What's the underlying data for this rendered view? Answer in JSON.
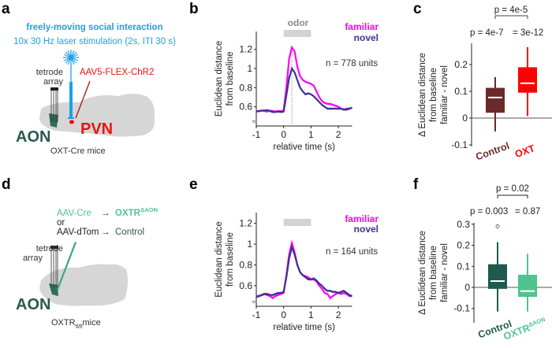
{
  "panels": {
    "a": {
      "label": "a",
      "title": "freely-moving social interaction",
      "subtitle": "10x 30 Hz laser stimulation (2s, ITI 30 s)",
      "tetrode_label_1": "tetrode",
      "tetrode_label_2": "array",
      "virus": "AAV5-FLEX-ChR2",
      "region_aon": "AON",
      "region_pvn": "PVN",
      "mouse_line": "OXT-Cre mice"
    },
    "d": {
      "label": "d",
      "virus_cre": "AAV-Cre",
      "arrow1": "→",
      "group_oxtr": "OXTR",
      "group_oxtr_sup": "ΔAON",
      "or": "or",
      "virus_dtom": "AAV-dTom",
      "arrow2": "→",
      "group_control": "Control",
      "tetrode_label_1": "tetrode",
      "tetrode_label_2": "array",
      "region_aon": "AON",
      "mouse_line": "OXTR",
      "mouse_line_sub": "fl/fl",
      "mouse_line_suffix": "mice"
    },
    "b": {
      "label": "b",
      "odor_label": "odor",
      "n_label": "n = 778 units"
    },
    "e": {
      "label": "e",
      "n_label": "n = 164 units"
    },
    "c": {
      "label": "c",
      "p_between": "p = 4e-7",
      "p_within": "= 3e-12",
      "p_bracket": "p = 4e-5"
    },
    "f": {
      "label": "f",
      "p_between": "p = 0.003",
      "p_within": "= 0.87",
      "p_bracket": "p = 0.02"
    }
  },
  "colors": {
    "familiar": "#ff00ff",
    "novel": "#3b3591",
    "odor_bar": "#d3d3d3",
    "control_c": "#6b2a2a",
    "oxt": "#ff0000",
    "control_f": "#1e5a4e",
    "oxtr": "#4fc490",
    "laser": "#1ea0e6"
  },
  "chart_data": [
    {
      "id": "b",
      "type": "line",
      "xlabel": "relative time (s)",
      "ylabel": [
        "Euclidean distance",
        "from baseline"
      ],
      "xticks": [
        -1,
        0,
        1,
        2
      ],
      "xtick_labels": [
        "-1",
        "0",
        "1",
        "2"
      ],
      "yticks": [
        0.6,
        0.8,
        1,
        1.2
      ],
      "ytick_labels": [
        "0.6",
        "0.8",
        "1",
        "1.2"
      ],
      "xlim": [
        -1,
        2.5
      ],
      "ylim": [
        0.45,
        1.3
      ],
      "x": [
        -1,
        -0.9,
        -0.8,
        -0.7,
        -0.6,
        -0.5,
        -0.4,
        -0.3,
        -0.2,
        -0.1,
        0,
        0.1,
        0.2,
        0.3,
        0.4,
        0.5,
        0.6,
        0.7,
        0.8,
        0.9,
        1,
        1.1,
        1.2,
        1.3,
        1.4,
        1.5,
        1.6,
        1.7,
        1.8,
        1.9,
        2,
        2.1,
        2.2,
        2.3,
        2.4,
        2.5
      ],
      "series": [
        {
          "name": "familiar",
          "values": [
            0.555,
            0.555,
            0.56,
            0.555,
            0.55,
            0.56,
            0.555,
            0.55,
            0.555,
            0.555,
            0.56,
            0.8,
            1.1,
            1.22,
            1.18,
            1.02,
            0.92,
            0.88,
            0.86,
            0.85,
            0.84,
            0.82,
            0.76,
            0.7,
            0.66,
            0.64,
            0.63,
            0.63,
            0.62,
            0.61,
            0.6,
            0.58,
            0.57,
            0.58,
            0.58,
            0.59
          ]
        },
        {
          "name": "novel",
          "values": [
            0.55,
            0.555,
            0.56,
            0.56,
            0.565,
            0.555,
            0.545,
            0.545,
            0.55,
            0.545,
            0.55,
            0.72,
            0.9,
            1.0,
            0.96,
            0.88,
            0.8,
            0.76,
            0.73,
            0.74,
            0.73,
            0.71,
            0.68,
            0.65,
            0.62,
            0.6,
            0.58,
            0.58,
            0.58,
            0.58,
            0.58,
            0.58,
            0.57,
            0.57,
            0.58,
            0.59
          ]
        }
      ],
      "stim_window": [
        0,
        1
      ],
      "marker_x": 0.3
    },
    {
      "id": "e",
      "type": "line",
      "xlabel": "relative time (s)",
      "ylabel": [
        "Euclidean distance",
        "from baseline"
      ],
      "xticks": [
        -1,
        0,
        1,
        2
      ],
      "xtick_labels": [
        "-1",
        "0",
        "1",
        "2"
      ],
      "yticks": [
        0.6,
        0.8,
        1,
        1.2
      ],
      "ytick_labels": [
        "0.6",
        "0.8",
        "1",
        "1.2"
      ],
      "xlim": [
        -1,
        2.5
      ],
      "ylim": [
        0.45,
        1.3
      ],
      "x": [
        -1,
        -0.9,
        -0.8,
        -0.7,
        -0.6,
        -0.5,
        -0.4,
        -0.3,
        -0.2,
        -0.1,
        0,
        0.1,
        0.2,
        0.3,
        0.4,
        0.5,
        0.6,
        0.7,
        0.8,
        0.9,
        1,
        1.1,
        1.2,
        1.3,
        1.4,
        1.5,
        1.6,
        1.7,
        1.8,
        1.9,
        2,
        2.1,
        2.2,
        2.3,
        2.4,
        2.5
      ],
      "series": [
        {
          "name": "familiar",
          "values": [
            0.5,
            0.5,
            0.51,
            0.52,
            0.51,
            0.5,
            0.48,
            0.5,
            0.51,
            0.52,
            0.53,
            0.7,
            0.9,
            1.01,
            0.92,
            0.8,
            0.73,
            0.7,
            0.69,
            0.68,
            0.66,
            0.66,
            0.64,
            0.6,
            0.57,
            0.53,
            0.52,
            0.48,
            0.5,
            0.52,
            0.53,
            0.52,
            0.53,
            0.52,
            0.5,
            0.5
          ]
        },
        {
          "name": "novel",
          "values": [
            0.49,
            0.5,
            0.51,
            0.52,
            0.52,
            0.51,
            0.51,
            0.52,
            0.53,
            0.53,
            0.54,
            0.68,
            0.86,
            0.97,
            0.9,
            0.8,
            0.73,
            0.7,
            0.68,
            0.66,
            0.66,
            0.67,
            0.65,
            0.62,
            0.6,
            0.57,
            0.55,
            0.55,
            0.54,
            0.54,
            0.53,
            0.54,
            0.55,
            0.53,
            0.51,
            0.5
          ]
        }
      ],
      "stim_window": [
        0,
        1
      ]
    },
    {
      "id": "c",
      "type": "box",
      "ylabel": [
        "Δ Euclidean distance",
        "from baseline",
        "familiar - novel"
      ],
      "yticks": [
        -0.1,
        0,
        0.1,
        0.2
      ],
      "ytick_labels": [
        "-0.1",
        "0",
        "0.1",
        "0.2"
      ],
      "ylim": [
        -0.1,
        0.28
      ],
      "categories": [
        "Control",
        "OXT"
      ],
      "boxes": [
        {
          "name": "Control",
          "whisker_low": -0.05,
          "q1": 0.02,
          "median": 0.077,
          "q3": 0.113,
          "whisker_high": 0.153,
          "outliers": []
        },
        {
          "name": "OXT",
          "whisker_low": 0.008,
          "q1": 0.095,
          "median": 0.13,
          "q3": 0.19,
          "whisker_high": 0.265,
          "outliers": []
        }
      ]
    },
    {
      "id": "f",
      "type": "box",
      "ylabel": [
        "Δ Euclidean distance",
        "from baseline",
        "familiar - novel"
      ],
      "yticks": [
        -0.1,
        0,
        0.1,
        0.2,
        0.3
      ],
      "ytick_labels": [
        "-0.1",
        "0",
        "0.1",
        "0.2",
        "0.3"
      ],
      "ylim": [
        -0.15,
        0.3
      ],
      "categories": [
        "Control",
        "OXTR"
      ],
      "category_sup": [
        "",
        "ΔAON"
      ],
      "boxes": [
        {
          "name": "Control",
          "whisker_low": -0.115,
          "q1": -0.007,
          "median": 0.03,
          "q3": 0.11,
          "whisker_high": 0.215,
          "outliers": [
            0.29
          ]
        },
        {
          "name": "OXTR",
          "whisker_low": -0.115,
          "q1": -0.045,
          "median": -0.018,
          "q3": 0.06,
          "whisker_high": 0.16,
          "outliers": []
        }
      ]
    }
  ],
  "legend": {
    "familiar": "familiar",
    "novel": "novel"
  }
}
